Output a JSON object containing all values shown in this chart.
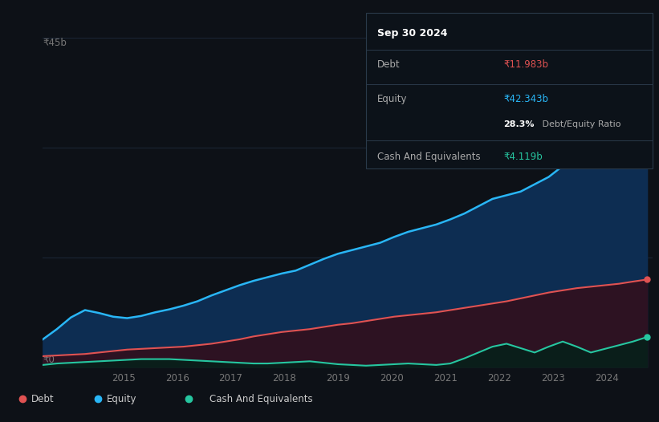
{
  "bg_color": "#0d1117",
  "plot_bg_color": "#111927",
  "grid_color": "#1a2535",
  "title_box": {
    "date": "Sep 30 2024",
    "debt_label": "Debt",
    "debt_value": "₹11.983b",
    "equity_label": "Equity",
    "equity_value": "₹42.343b",
    "ratio_bold": "28.3%",
    "ratio_rest": " Debt/Equity Ratio",
    "cash_label": "Cash And Equivalents",
    "cash_value": "₹4.119b",
    "box_color": "#0c1219",
    "border_color": "#2a3a4a",
    "date_color": "#ffffff",
    "label_color": "#aaaaaa",
    "debt_val_color": "#e05252",
    "equity_val_color": "#29b6f6",
    "ratio_bold_color": "#ffffff",
    "ratio_rest_color": "#aaaaaa",
    "cash_val_color": "#26c6a0"
  },
  "y_label_top": "₹45b",
  "y_label_zero": "₹0",
  "x_ticks": [
    "2015",
    "2016",
    "2017",
    "2018",
    "2019",
    "2020",
    "2021",
    "2022",
    "2023",
    "2024"
  ],
  "equity_color": "#29b6f6",
  "equity_fill": "#0d2d52",
  "debt_color": "#e05252",
  "debt_fill": "#2d1222",
  "cash_color": "#26c6a0",
  "cash_fill": "#0a1e1a",
  "ylim": [
    0,
    45
  ],
  "legend_items": [
    {
      "label": "Debt",
      "color": "#e05252"
    },
    {
      "label": "Equity",
      "color": "#29b6f6"
    },
    {
      "label": "Cash And Equivalents",
      "color": "#26c6a0"
    }
  ],
  "equity_data": [
    3.8,
    5.2,
    6.8,
    7.8,
    7.4,
    6.9,
    6.7,
    7.0,
    7.5,
    7.9,
    8.4,
    9.0,
    9.8,
    10.5,
    11.2,
    11.8,
    12.3,
    12.8,
    13.2,
    14.0,
    14.8,
    15.5,
    16.0,
    16.5,
    17.0,
    17.8,
    18.5,
    19.0,
    19.5,
    20.2,
    21.0,
    22.0,
    23.0,
    23.5,
    24.0,
    25.0,
    26.0,
    27.5,
    29.5,
    32.0,
    35.5,
    38.5,
    40.5,
    42.343
  ],
  "debt_data": [
    1.5,
    1.6,
    1.7,
    1.8,
    2.0,
    2.2,
    2.4,
    2.5,
    2.6,
    2.7,
    2.8,
    3.0,
    3.2,
    3.5,
    3.8,
    4.2,
    4.5,
    4.8,
    5.0,
    5.2,
    5.5,
    5.8,
    6.0,
    6.3,
    6.6,
    6.9,
    7.1,
    7.3,
    7.5,
    7.8,
    8.1,
    8.4,
    8.7,
    9.0,
    9.4,
    9.8,
    10.2,
    10.5,
    10.8,
    11.0,
    11.2,
    11.4,
    11.7,
    11.983
  ],
  "cash_data": [
    0.3,
    0.5,
    0.6,
    0.7,
    0.8,
    0.9,
    1.0,
    1.1,
    1.1,
    1.1,
    1.0,
    0.9,
    0.8,
    0.7,
    0.6,
    0.5,
    0.5,
    0.6,
    0.7,
    0.8,
    0.6,
    0.4,
    0.3,
    0.2,
    0.3,
    0.4,
    0.5,
    0.4,
    0.3,
    0.5,
    1.2,
    2.0,
    2.8,
    3.2,
    2.6,
    2.0,
    2.8,
    3.5,
    2.8,
    2.0,
    2.5,
    3.0,
    3.5,
    4.119
  ]
}
